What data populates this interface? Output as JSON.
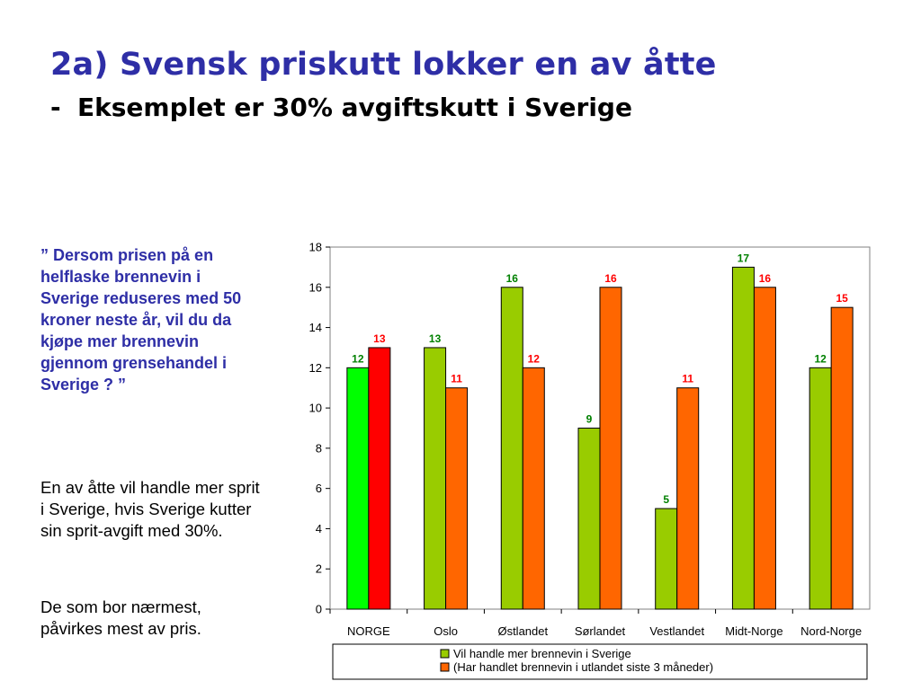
{
  "header": {
    "title": "2a) Svensk priskutt lokker en av åtte",
    "subtitle_dash": "-",
    "subtitle": "Eksemplet er 30% avgiftskutt i Sverige"
  },
  "text": {
    "quote": "” Dersom prisen på en helflaske brennevin i Sverige reduseres med 50 kroner neste år, vil du da kjøpe mer brennevin gjennom grensehandel i Sverige ? ”",
    "para1": "En av åtte vil handle mer sprit i Sverige, hvis Sverige kutter sin sprit-avgift med 30%.",
    "para2": "De som bor nærmest, påvirkes mest av pris."
  },
  "chart_data": {
    "type": "bar",
    "categories": [
      "NORGE",
      "Oslo",
      "Østlandet",
      "Sørlandet",
      "Vestlandet",
      "Midt-Norge",
      "Nord-Norge"
    ],
    "series": [
      {
        "name": "Vil handle mer brennevin i Sverige",
        "values": [
          12,
          13,
          16,
          9,
          5,
          17,
          12
        ],
        "color": "#99cc00",
        "first_color": "#00ff00",
        "label_color": "#008000"
      },
      {
        "name": "(Har handlet brennevin i utlandet siste 3 måneder)",
        "values": [
          13,
          11,
          12,
          16,
          11,
          16,
          15
        ],
        "color": "#ff6600",
        "first_color": "#ff0000",
        "label_color": "#ff0000"
      }
    ],
    "yticks": [
      "0",
      "2",
      "4",
      "6",
      "8",
      "10",
      "12",
      "14",
      "16",
      "18"
    ],
    "ylim": [
      0,
      18
    ],
    "grid": false,
    "legend_position": "bottom"
  }
}
